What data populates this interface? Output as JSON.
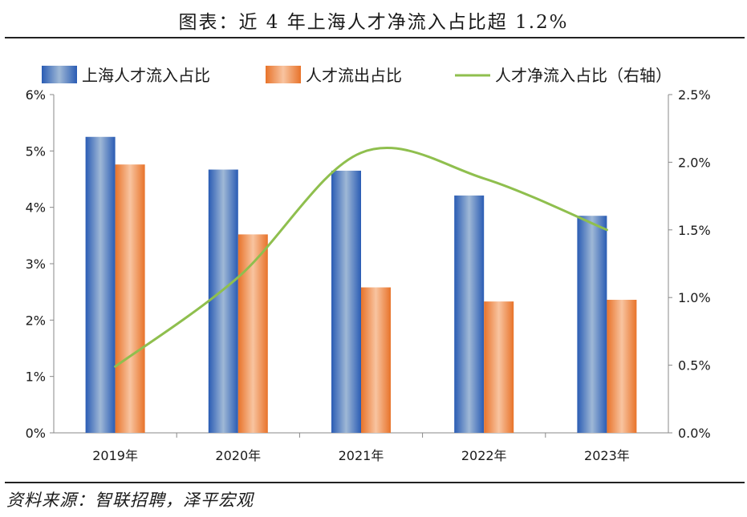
{
  "header": {
    "title": "图表：近 4 年上海人才净流入占比超 1.2%"
  },
  "footer": {
    "source": "资料来源：智联招聘，泽平宏观"
  },
  "colors": {
    "inflow": "#3a6fc4",
    "outflow": "#f08a45",
    "net": "#8fbf4e",
    "axis": "#888888"
  },
  "chart_data": {
    "type": "bar",
    "categories": [
      "2019年",
      "2020年",
      "2021年",
      "2022年",
      "2023年"
    ],
    "series": [
      {
        "name": "上海人才流入占比",
        "type": "bar",
        "axis": "left",
        "values": [
          5.25,
          4.67,
          4.65,
          4.21,
          3.85
        ]
      },
      {
        "name": "人才流出占比",
        "type": "bar",
        "axis": "left",
        "values": [
          4.76,
          3.52,
          2.58,
          2.33,
          2.36
        ]
      },
      {
        "name": "人才净流入占比（右轴）",
        "type": "line",
        "axis": "right",
        "values": [
          0.49,
          1.15,
          2.07,
          1.88,
          1.5
        ]
      }
    ],
    "y_left": {
      "ylim": [
        0,
        6
      ],
      "ticks": [
        "0%",
        "1%",
        "2%",
        "3%",
        "4%",
        "5%",
        "6%"
      ]
    },
    "y_right": {
      "ylim": [
        0,
        2.5
      ],
      "ticks": [
        "0.0%",
        "0.5%",
        "1.0%",
        "1.5%",
        "2.0%",
        "2.5%"
      ]
    },
    "legend_position": "top",
    "grid": false
  }
}
